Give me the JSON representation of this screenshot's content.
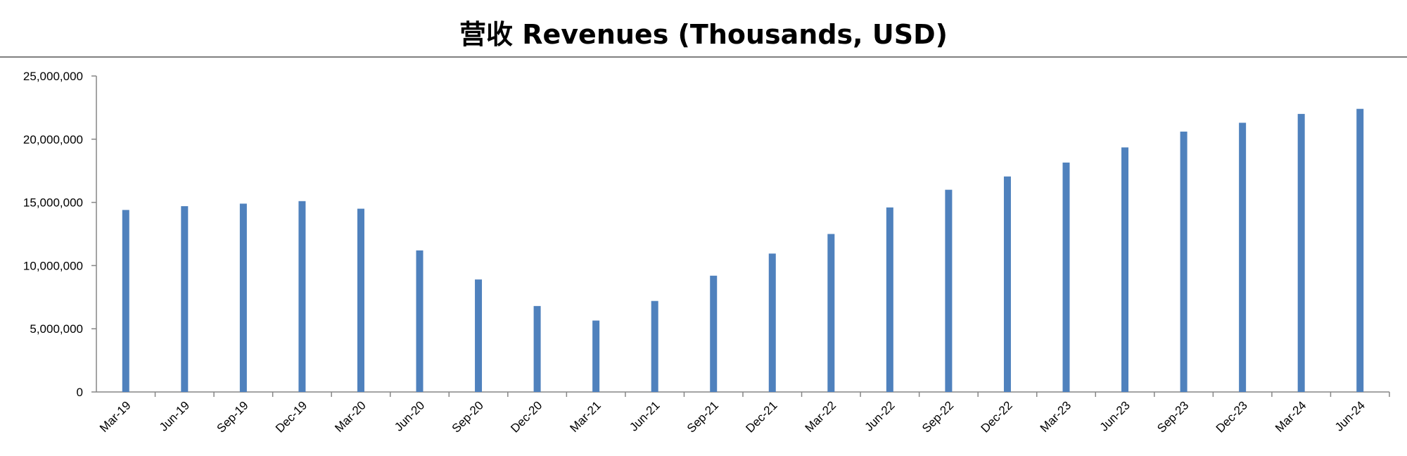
{
  "chart_data": {
    "type": "bar",
    "title": "营收 Revenues (Thousands, USD)",
    "xlabel": "",
    "ylabel": "",
    "categories": [
      "Mar-19",
      "Jun-19",
      "Sep-19",
      "Dec-19",
      "Mar-20",
      "Jun-20",
      "Sep-20",
      "Dec-20",
      "Mar-21",
      "Jun-21",
      "Sep-21",
      "Dec-21",
      "Mar-22",
      "Jun-22",
      "Sep-22",
      "Dec-22",
      "Mar-23",
      "Jun-23",
      "Sep-23",
      "Dec-23",
      "Mar-24",
      "Jun-24"
    ],
    "values": [
      14400000,
      14700000,
      14900000,
      15100000,
      14500000,
      11200000,
      8900000,
      6800000,
      5650000,
      7200000,
      9200000,
      10950000,
      12500000,
      14600000,
      16000000,
      17050000,
      18150000,
      19350000,
      20600000,
      21300000,
      22000000,
      22400000
    ],
    "ylim": [
      0,
      25000000
    ],
    "y_ticks": [
      "0",
      "5,000,000",
      "10,000,000",
      "15,000,000",
      "20,000,000",
      "25,000,000"
    ],
    "grid": false,
    "legend": "none",
    "bar_color": "#4F81BD",
    "axis_color": "#868686"
  }
}
